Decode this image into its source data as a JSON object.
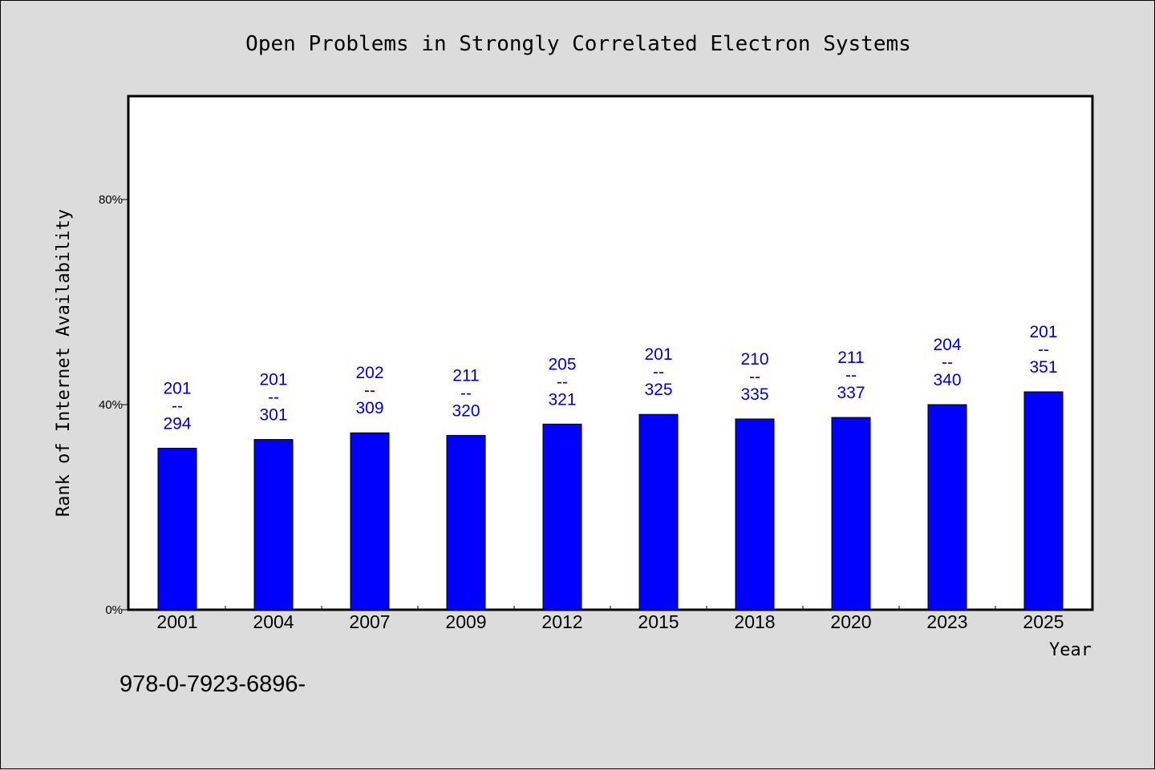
{
  "chart_data": {
    "type": "bar",
    "title": "Open Problems in Strongly Correlated Electron Systems",
    "xlabel": "Year",
    "ylabel": "Rank of Internet Availability",
    "categories": [
      "2001",
      "2004",
      "2007",
      "2009",
      "2012",
      "2015",
      "2018",
      "2020",
      "2023",
      "2025"
    ],
    "values": [
      31.5,
      33.2,
      34.5,
      34.0,
      36.2,
      38.1,
      37.2,
      37.5,
      40.0,
      42.5
    ],
    "data_labels": [
      [
        "201",
        "--",
        "294"
      ],
      [
        "201",
        "--",
        "301"
      ],
      [
        "202",
        "--",
        "309"
      ],
      [
        "211",
        "--",
        "320"
      ],
      [
        "205",
        "--",
        "321"
      ],
      [
        "201",
        "--",
        "325"
      ],
      [
        "210",
        "--",
        "335"
      ],
      [
        "211",
        "--",
        "337"
      ],
      [
        "204",
        "--",
        "340"
      ],
      [
        "201",
        "--",
        "351"
      ]
    ],
    "yticks": [
      0,
      40,
      80
    ],
    "ytick_labels": [
      "0%",
      "40%",
      "80%"
    ],
    "ylim": [
      0,
      100
    ],
    "grid": false,
    "bar_color": "#0000ff",
    "label_color": "#0000cc",
    "background": "#dcdcdc",
    "plot_background": "#ffffff"
  },
  "footnote": "978-0-7923-6896-"
}
